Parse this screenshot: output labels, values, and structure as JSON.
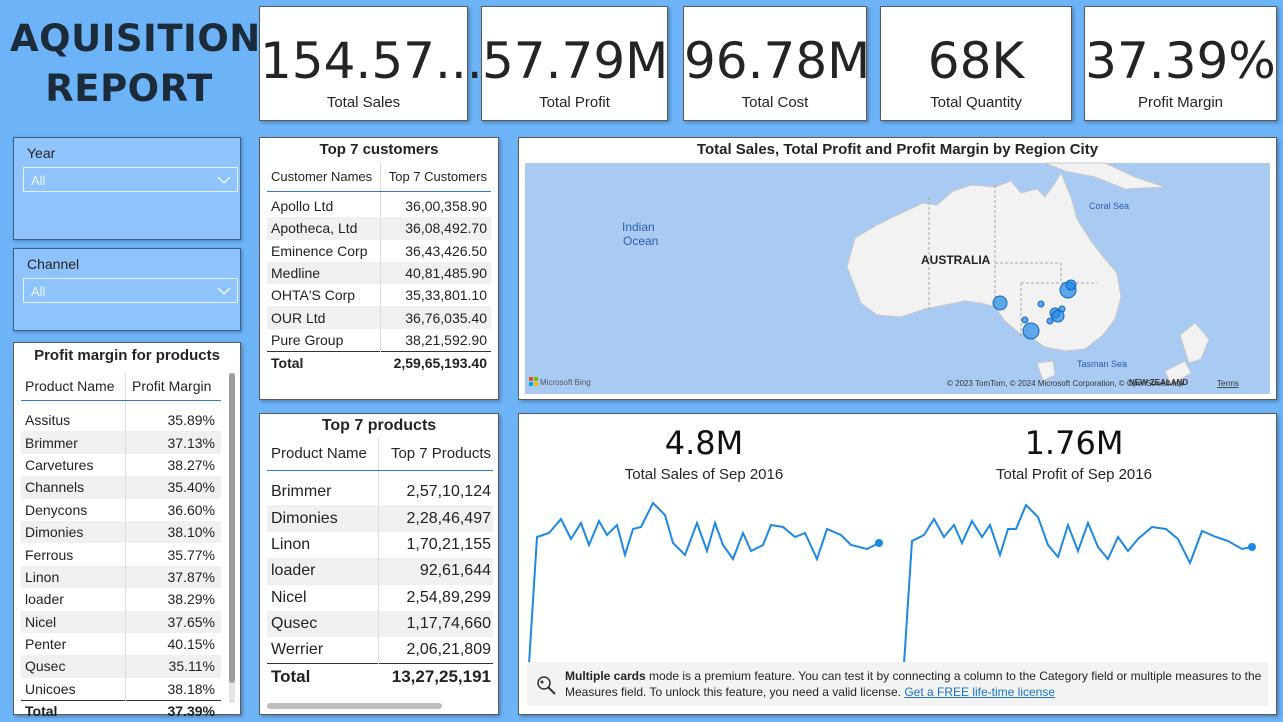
{
  "report_title_line1": "AQUISITION",
  "report_title_line2": "REPORT",
  "kpis": [
    {
      "value": "154.57...",
      "label": "Total Sales"
    },
    {
      "value": "57.79M",
      "label": "Total Profit"
    },
    {
      "value": "96.78M",
      "label": "Total Cost"
    },
    {
      "value": "68K",
      "label": "Total Quantity"
    },
    {
      "value": "37.39%",
      "label": "Profit Margin"
    }
  ],
  "slicers": {
    "year": {
      "label": "Year",
      "value": "All"
    },
    "channel": {
      "label": "Channel",
      "value": "All"
    }
  },
  "profit_margin_table": {
    "title": "Profit margin for products",
    "headers": [
      "Product Name",
      "Profit Margin"
    ],
    "rows": [
      [
        "Assitus",
        "35.89%"
      ],
      [
        "Brimmer",
        "37.13%"
      ],
      [
        "Carvetures",
        "38.27%"
      ],
      [
        "Channels",
        "35.40%"
      ],
      [
        "Denycons",
        "36.60%"
      ],
      [
        "Dimonies",
        "38.10%"
      ],
      [
        "Ferrous",
        "35.77%"
      ],
      [
        "Linon",
        "37.87%"
      ],
      [
        "loader",
        "38.29%"
      ],
      [
        "Nicel",
        "37.65%"
      ],
      [
        "Penter",
        "40.15%"
      ],
      [
        "Qusec",
        "35.11%"
      ],
      [
        "Unicoes",
        "38.18%"
      ]
    ],
    "total": [
      "Total",
      "37.39%"
    ]
  },
  "top_customers": {
    "title": "Top 7 customers",
    "headers": [
      "Customer Names",
      "Top 7 Customers"
    ],
    "rows": [
      [
        "Apollo Ltd",
        "36,00,358.90"
      ],
      [
        "Apotheca, Ltd",
        "36,08,492.70"
      ],
      [
        "Eminence Corp",
        "36,43,426.50"
      ],
      [
        "Medline",
        "40,81,485.90"
      ],
      [
        "OHTA'S Corp",
        "35,33,801.10"
      ],
      [
        "OUR Ltd",
        "36,76,035.40"
      ],
      [
        "Pure Group",
        "38,21,592.90"
      ]
    ],
    "total": [
      "Total",
      "2,59,65,193.40"
    ]
  },
  "top_products": {
    "title": "Top 7 products",
    "headers": [
      "Product Name",
      "Top 7 Products"
    ],
    "rows": [
      [
        "Brimmer",
        "2,57,10,124"
      ],
      [
        "Dimonies",
        "2,28,46,497"
      ],
      [
        "Linon",
        "1,70,21,155"
      ],
      [
        "loader",
        "92,61,644"
      ],
      [
        "Nicel",
        "2,54,89,299"
      ],
      [
        "Qusec",
        "1,17,74,660"
      ],
      [
        "Werrier",
        "2,06,21,809"
      ]
    ],
    "total": [
      "Total",
      "13,27,25,191"
    ]
  },
  "map": {
    "title": "Total Sales, Total Profit and Profit Margin by Region City",
    "country_label": "AUSTRALIA",
    "ocean_label_1": "Indian",
    "ocean_label_2": "Ocean",
    "coral_sea": "Coral Sea",
    "tasman_sea": "Tasman Sea",
    "nz_label": "NEW ZEALAND",
    "bing_logo": "Microsoft Bing",
    "attribution": "© 2023 TomTom, © 2024 Microsoft Corporation, © OpenStreetMap",
    "terms": "Terms"
  },
  "cards": [
    {
      "value": "4.8M",
      "label": "Total Sales of Sep 2016"
    },
    {
      "value": "1.76M",
      "label": "Total Profit of Sep 2016"
    }
  ],
  "notice": {
    "bold": "Multiple cards",
    "text": " mode is a premium feature. You can test it by connecting a column to the Category field or multiple measures to the Measures field. To unlock this feature, you need a valid license. ",
    "link": "Get a FREE life-time license"
  },
  "colors": {
    "background": "#6db3f7",
    "accent": "#1e88e5",
    "map_water": "#a9cbf3",
    "map_land": "#f2f2f2"
  }
}
